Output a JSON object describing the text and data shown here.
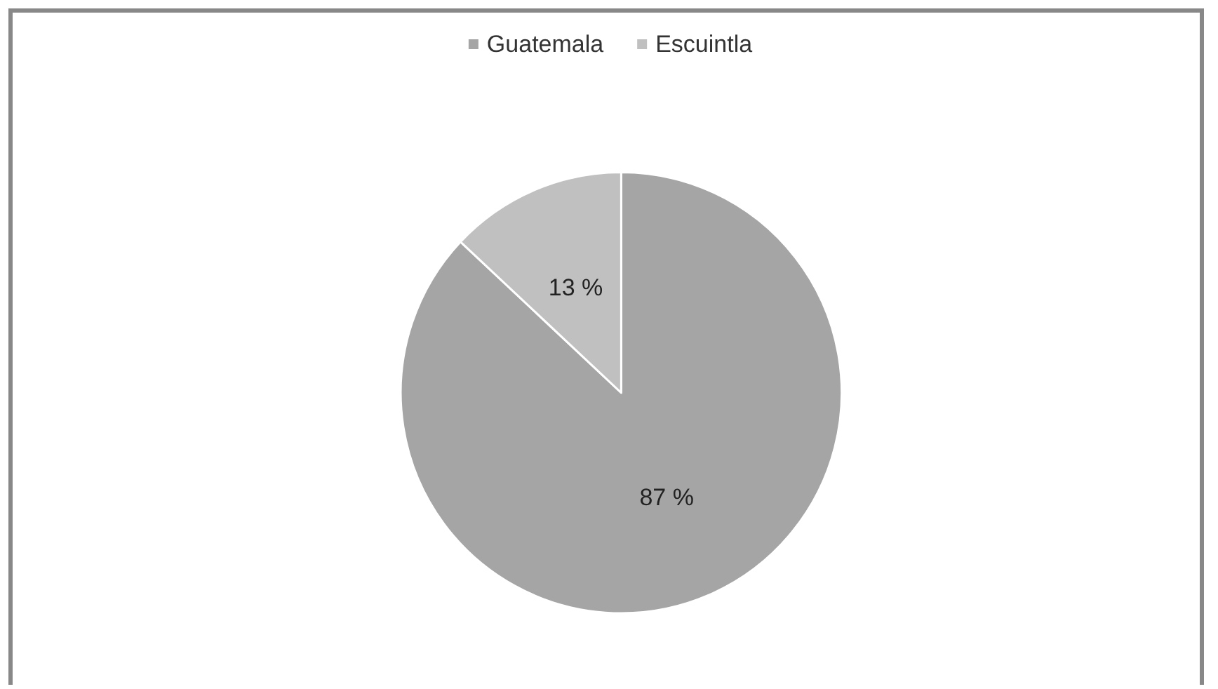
{
  "chart_data": {
    "type": "pie",
    "categories": [
      "Guatemala",
      "Escuintla"
    ],
    "values": [
      87,
      13
    ],
    "colors": [
      "#a5a5a5",
      "#c0c0c0"
    ],
    "value_labels": [
      "87 %",
      "13 %"
    ],
    "legend": "top"
  }
}
